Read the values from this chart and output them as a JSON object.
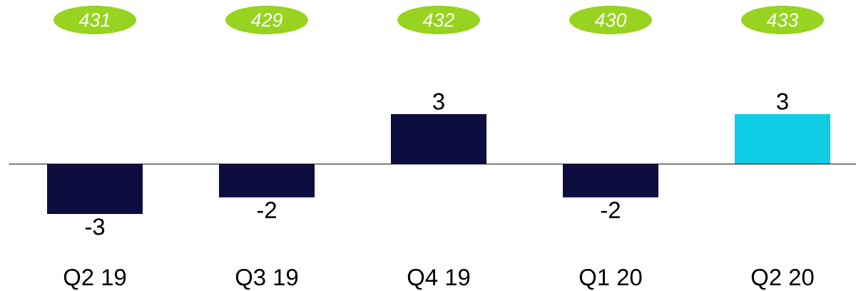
{
  "chart_data": {
    "type": "bar",
    "categories": [
      "Q2 19",
      "Q3 19",
      "Q4 19",
      "Q1 20",
      "Q2 20"
    ],
    "values": [
      -3,
      -2,
      3,
      -2,
      3
    ],
    "colors": [
      "#0d0d3f",
      "#0d0d3f",
      "#0d0d3f",
      "#0d0d3f",
      "#10cde6"
    ],
    "data_labels": true,
    "annotations": [
      "431",
      "429",
      "432",
      "430",
      "433"
    ]
  }
}
